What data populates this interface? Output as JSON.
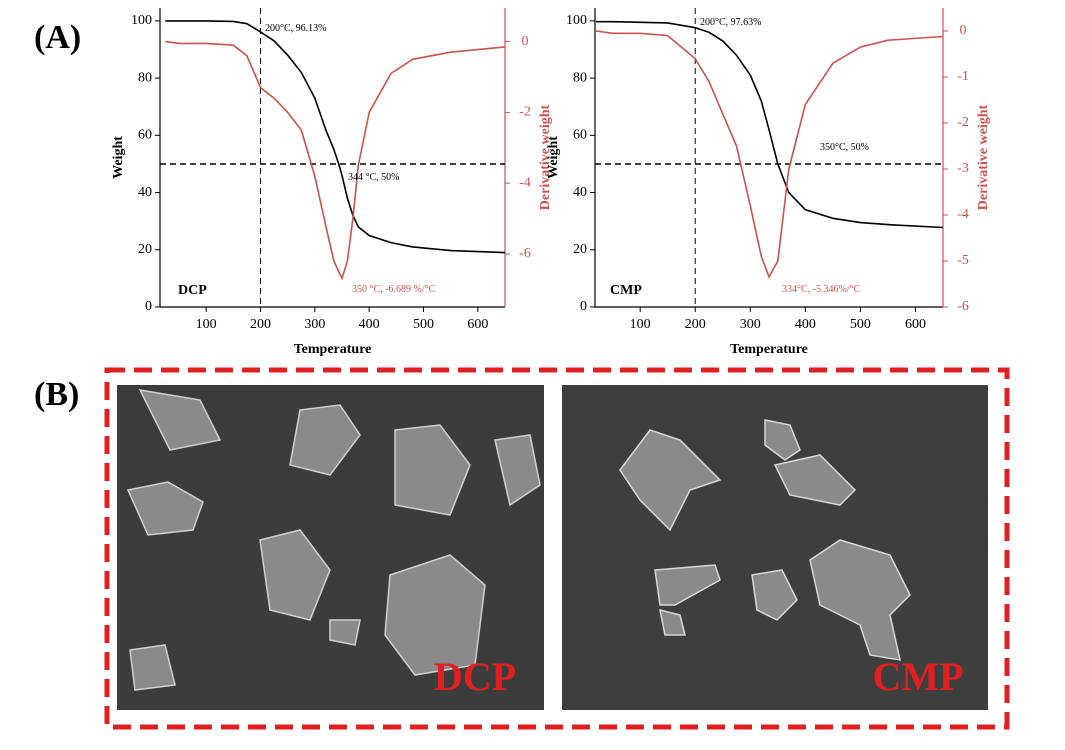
{
  "panels": {
    "a_label": "(A)",
    "b_label": "(B)",
    "images": [
      "DCP",
      "CMP"
    ]
  },
  "chart_data": [
    {
      "type": "line",
      "x_label": "Temperature",
      "y_label": "Weight",
      "y2_label": "Derivative weight",
      "x": [
        25,
        50,
        100,
        150,
        175,
        200,
        225,
        250,
        275,
        300,
        320,
        335,
        344,
        350,
        360,
        370,
        380,
        400,
        440,
        480,
        550,
        650
      ],
      "series": [
        {
          "color": "#000000",
          "values": [
            100,
            100,
            100,
            99.8,
            99,
            96.13,
            93,
            88,
            82,
            73,
            62,
            55,
            50,
            46,
            38,
            32,
            28,
            25,
            22.5,
            21,
            19.7,
            19
          ]
        },
        {
          "color": "#c8524e",
          "axis": "y2",
          "values": [
            0,
            -0.05,
            -0.05,
            -0.1,
            -0.4,
            -1.3,
            -1.6,
            -2,
            -2.5,
            -3.8,
            -5.2,
            -6.2,
            -6.5,
            -6.689,
            -6.2,
            -5,
            -3.5,
            -2,
            -0.9,
            -0.5,
            -0.3,
            -0.15
          ]
        }
      ],
      "xlim": [
        15,
        650
      ],
      "xticks": [
        100,
        200,
        300,
        400,
        500,
        600
      ],
      "ylim": [
        0,
        104.5
      ],
      "yticks": [
        0,
        20,
        40,
        60,
        80,
        100
      ],
      "y2lim": [
        -7.5,
        0.95
      ],
      "y2ticks": [
        -6,
        -4,
        -2,
        0
      ],
      "vline": 200,
      "hline": 50,
      "annotations": [
        "200°C, 96.13%",
        "344 °C, 50%",
        "350 °C, -6.689 %/°C",
        "DCP"
      ]
    },
    {
      "type": "line",
      "x_label": "Temperature",
      "y_label": "Weight",
      "y2_label": "Derivative weight",
      "x": [
        20,
        50,
        100,
        150,
        200,
        225,
        250,
        275,
        300,
        320,
        334,
        350,
        370,
        400,
        450,
        500,
        550,
        650
      ],
      "series": [
        {
          "color": "#000000",
          "values": [
            99.7,
            99.7,
            99.5,
            99.3,
            97.63,
            96,
            93,
            88,
            81,
            72,
            62,
            50,
            40,
            34,
            31,
            29.5,
            28.8,
            27.8
          ]
        },
        {
          "color": "#c8524e",
          "axis": "y2",
          "values": [
            0,
            -0.05,
            -0.05,
            -0.1,
            -0.6,
            -1.1,
            -1.8,
            -2.5,
            -3.8,
            -4.9,
            -5.346,
            -5,
            -3,
            -1.6,
            -0.7,
            -0.35,
            -0.2,
            -0.12
          ]
        }
      ],
      "xlim": [
        18,
        650
      ],
      "xticks": [
        100,
        200,
        300,
        400,
        500,
        600
      ],
      "ylim": [
        0,
        104.5
      ],
      "yticks": [
        0,
        20,
        40,
        60,
        80,
        100
      ],
      "y2lim": [
        -6,
        0.5
      ],
      "y2ticks": [
        -6,
        -5,
        -4,
        -3,
        -2,
        -1,
        0
      ],
      "vline": 200,
      "hline": 50,
      "annotations": [
        "200°C, 97.63%",
        "350°C, 50%",
        "334°C, -5.346%/°C",
        "CMP"
      ]
    }
  ]
}
